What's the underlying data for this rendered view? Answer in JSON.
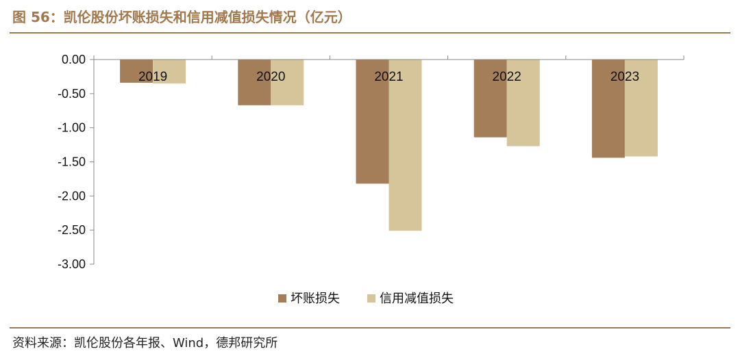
{
  "header": {
    "title": "图 56：凯伦股份坏账损失和信用减值损失情况（亿元）"
  },
  "footer": {
    "source": "资料来源：凯伦股份各年报、Wind，德邦研究所"
  },
  "colors": {
    "accent": "#a0784c",
    "series_1": "#a47e59",
    "series_2": "#d6c49a"
  },
  "chart_data": {
    "type": "bar",
    "title": "凯伦股份坏账损失和信用减值损失情况（亿元）",
    "xlabel": "",
    "ylabel": "",
    "categories": [
      "2019",
      "2020",
      "2021",
      "2022",
      "2023"
    ],
    "series": [
      {
        "name": "坏账损失",
        "values": [
          -0.34,
          -0.67,
          -1.82,
          -1.14,
          -1.44
        ]
      },
      {
        "name": "信用减值损失",
        "values": [
          -0.35,
          -0.67,
          -2.51,
          -1.27,
          -1.42
        ]
      }
    ],
    "ylim": [
      -3.0,
      0.0
    ],
    "yticks": [
      "0.00",
      "-0.50",
      "-1.00",
      "-1.50",
      "-2.00",
      "-2.50",
      "-3.00"
    ],
    "ytick_values": [
      0,
      -0.5,
      -1.0,
      -1.5,
      -2.0,
      -2.5,
      -3.0
    ],
    "grid": false,
    "legend_position": "bottom-center"
  }
}
